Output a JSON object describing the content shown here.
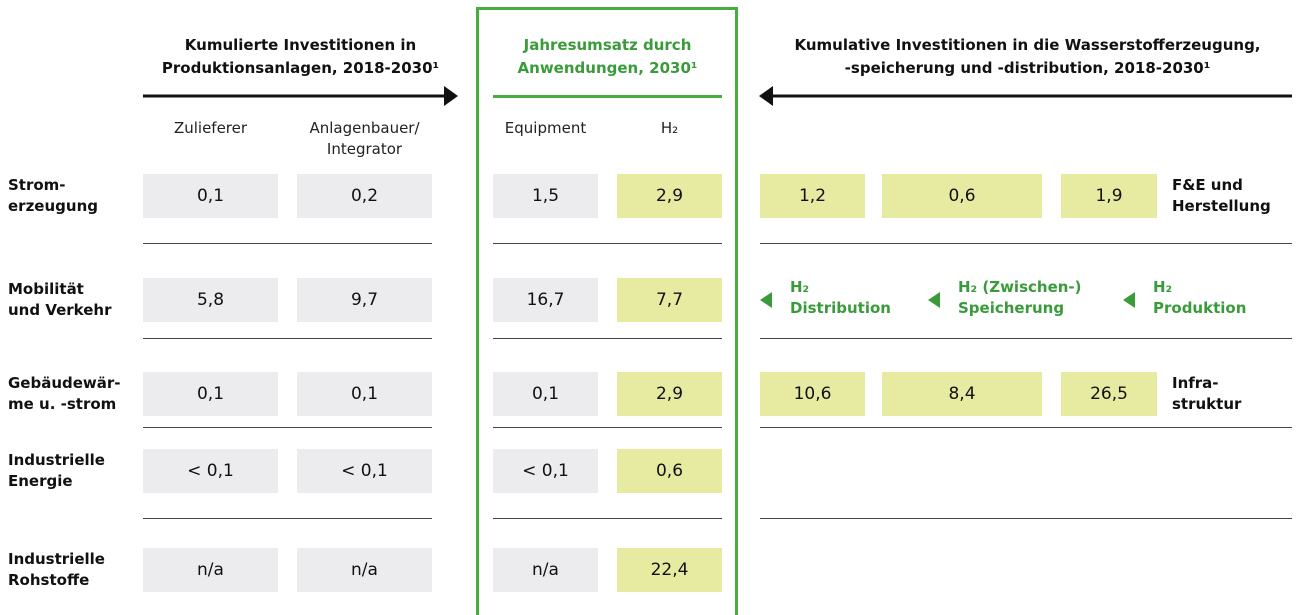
{
  "header": {
    "left": [
      "Kumulierte Investitionen in",
      "Produktionsanlagen, 2018-2030¹"
    ],
    "middle": [
      "Jahresumsatz durch",
      "Anwendungen, 2030¹"
    ],
    "right": [
      "Kumulative Investitionen in die Wasserstofferzeugung,",
      "-speicherung und -distribution, 2018-2030¹"
    ]
  },
  "columns": [
    [
      "Zulieferer"
    ],
    [
      "Anlagenbauer/",
      "Integrator"
    ],
    [
      "Equipment"
    ],
    [
      "H₂"
    ]
  ],
  "rows": [
    {
      "label": [
        "Strom-",
        "erzeugung"
      ],
      "values": [
        "0,1",
        "0,2",
        "1,5",
        "2,9"
      ]
    },
    {
      "label": [
        "Mobilität",
        "und Verkehr"
      ],
      "values": [
        "5,8",
        "9,7",
        "16,7",
        "7,7"
      ]
    },
    {
      "label": [
        "Gebäudewär-",
        "me u. -strom"
      ],
      "values": [
        "0,1",
        "0,1",
        "0,1",
        "2,9"
      ]
    },
    {
      "label": [
        "Industrielle",
        "Energie"
      ],
      "values": [
        "< 0,1",
        "< 0,1",
        "< 0,1",
        "0,6"
      ]
    },
    {
      "label": [
        "Industrielle",
        "Rohstoffe"
      ],
      "values": [
        "n/a",
        "n/a",
        "n/a",
        "22,4"
      ]
    }
  ],
  "right_rows": [
    {
      "values": [
        "1,2",
        "0,6",
        "1,9"
      ],
      "label": [
        "F&E und",
        "Herstellung"
      ]
    },
    {
      "stages": [
        [
          "H₂",
          "Distribution"
        ],
        [
          "H₂ (Zwischen-)",
          "Speicherung"
        ],
        [
          "H₂",
          "Produktion"
        ]
      ]
    },
    {
      "values": [
        "10,6",
        "8,4",
        "26,5"
      ],
      "label": [
        "Infra-",
        "struktur"
      ]
    }
  ]
}
